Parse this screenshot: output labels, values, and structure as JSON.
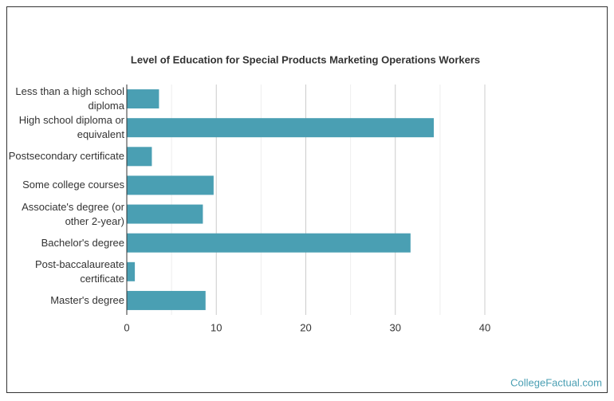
{
  "chart_data": {
    "type": "bar",
    "orientation": "horizontal",
    "title": "Level of Education for Special Products Marketing Operations Workers",
    "categories": [
      "Less than a high school diploma",
      "High school diploma or equivalent",
      "Postsecondary certificate",
      "Some college courses",
      "Associate's degree (or other 2-year)",
      "Bachelor's degree",
      "Post-baccalaureate certificate",
      "Master's degree"
    ],
    "values": [
      3.6,
      34.3,
      2.8,
      9.7,
      8.5,
      31.7,
      0.9,
      8.8
    ],
    "color": "#4a9fb3",
    "xlim": [
      0,
      40
    ],
    "xticks": [
      0,
      10,
      20,
      30,
      40
    ],
    "xminorticks": [
      5,
      15,
      25,
      35
    ],
    "grid": true,
    "source": "CollegeFactual.com"
  }
}
